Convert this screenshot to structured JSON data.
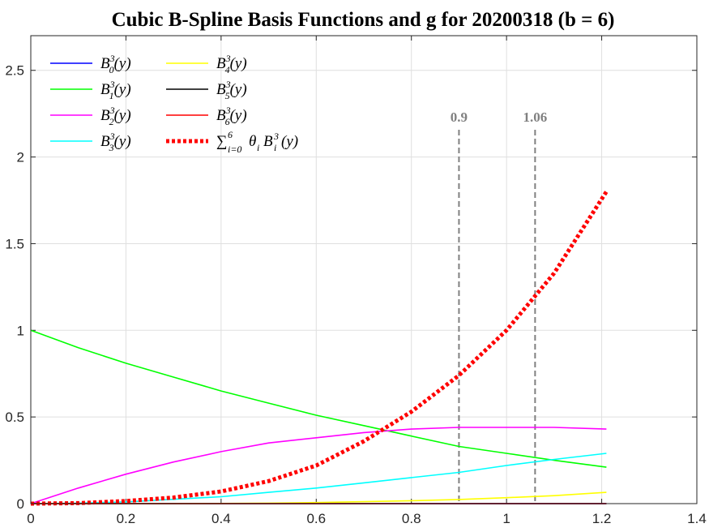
{
  "chart_data": {
    "type": "line",
    "title": "Cubic B-Spline Basis Functions and g for 20200318 (b = 6)",
    "xlabel": "",
    "ylabel": "",
    "xlim": [
      0,
      1.4
    ],
    "ylim": [
      0,
      2.7
    ],
    "xticks": [
      "0",
      "0.2",
      "0.4",
      "0.6",
      "0.8",
      "1",
      "1.2",
      "1.4"
    ],
    "yticks": [
      "0",
      "0.5",
      "1",
      "1.5",
      "2",
      "2.5"
    ],
    "grid": true,
    "legend_position": "top-left",
    "vertical_lines": [
      {
        "x": 0.9,
        "label": "0.9",
        "color": "#808080"
      },
      {
        "x": 1.06,
        "label": "1.06",
        "color": "#808080"
      }
    ],
    "x": [
      0,
      0.1,
      0.2,
      0.3,
      0.4,
      0.5,
      0.6,
      0.7,
      0.8,
      0.9,
      1.0,
      1.1,
      1.21
    ],
    "series": [
      {
        "key": "b0",
        "name": "B_0^3(y)",
        "color": "#0000ff",
        "dashed": false,
        "values": [
          0,
          0,
          0,
          0,
          0,
          0,
          0,
          0,
          0,
          0,
          0,
          0,
          0
        ]
      },
      {
        "key": "b1",
        "name": "B_1^3(y)",
        "color": "#00ff00",
        "dashed": false,
        "values": [
          1.0,
          0.9,
          0.81,
          0.73,
          0.65,
          0.58,
          0.51,
          0.45,
          0.39,
          0.33,
          0.29,
          0.25,
          0.21
        ]
      },
      {
        "key": "b2",
        "name": "B_2^3(y)",
        "color": "#ff00ff",
        "dashed": false,
        "values": [
          0.0,
          0.09,
          0.17,
          0.24,
          0.3,
          0.35,
          0.38,
          0.41,
          0.43,
          0.44,
          0.44,
          0.44,
          0.43
        ]
      },
      {
        "key": "b3",
        "name": "B_3^3(y)",
        "color": "#00ffff",
        "dashed": false,
        "values": [
          0.0,
          0.003,
          0.01,
          0.025,
          0.04,
          0.065,
          0.09,
          0.12,
          0.15,
          0.18,
          0.22,
          0.255,
          0.29
        ]
      },
      {
        "key": "b4",
        "name": "B_4^3(y)",
        "color": "#ffff00",
        "dashed": false,
        "values": [
          0,
          0,
          0,
          0,
          0.001,
          0.003,
          0.006,
          0.011,
          0.017,
          0.024,
          0.034,
          0.046,
          0.065
        ]
      },
      {
        "key": "b5",
        "name": "B_5^3(y)",
        "color": "#000000",
        "dashed": false,
        "values": [
          0,
          0,
          0,
          0,
          0,
          0,
          0,
          0,
          0,
          0,
          0,
          0,
          0
        ]
      },
      {
        "key": "b6",
        "name": "B_6^3(y)",
        "color": "#ff0000",
        "dashed": false,
        "values": [
          0,
          0,
          0,
          0,
          0,
          0,
          0,
          0,
          0,
          0,
          0,
          0,
          0
        ]
      },
      {
        "key": "g",
        "name": "∑_{i=0}^6 θ_i B_i^3(y)",
        "color": "#ff0000",
        "dashed": true,
        "values": [
          0.0,
          0.003,
          0.015,
          0.035,
          0.07,
          0.13,
          0.22,
          0.36,
          0.53,
          0.74,
          1.0,
          1.33,
          1.8
        ]
      }
    ]
  }
}
